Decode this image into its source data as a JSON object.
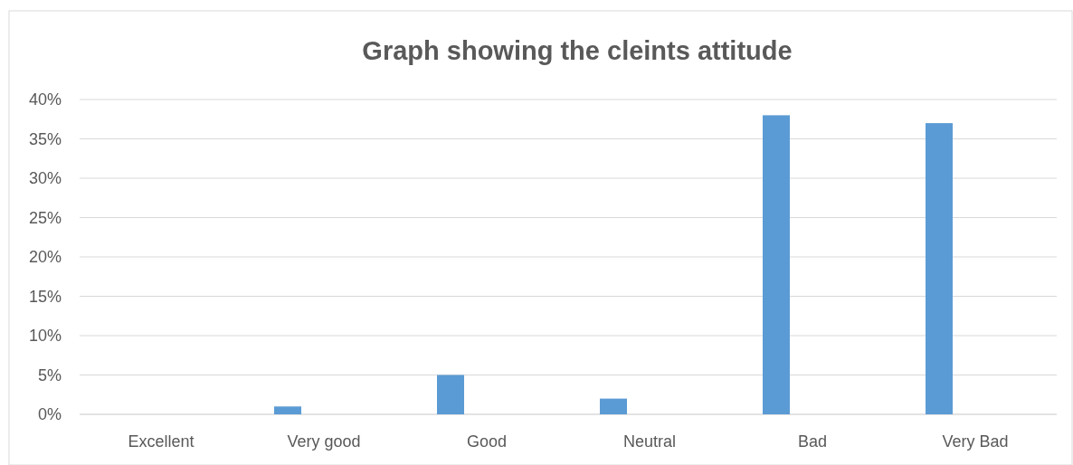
{
  "chart_data": {
    "type": "bar",
    "title": "Graph showing the cleints attitude",
    "categories": [
      "Excellent",
      "Very good",
      "Good",
      "Neutral",
      "Bad",
      "Very Bad"
    ],
    "values": [
      0,
      1,
      5,
      2,
      38,
      37
    ],
    "color": "#5b9bd5",
    "ylim": [
      0,
      40
    ],
    "yticks": [
      {
        "value": 0,
        "label": "0%"
      },
      {
        "value": 5,
        "label": "5%"
      },
      {
        "value": 10,
        "label": "10%"
      },
      {
        "value": 15,
        "label": "15%"
      },
      {
        "value": 20,
        "label": "20%"
      },
      {
        "value": 25,
        "label": "25%"
      },
      {
        "value": 30,
        "label": "30%"
      },
      {
        "value": 35,
        "label": "35%"
      },
      {
        "value": 40,
        "label": "40%"
      }
    ],
    "grid": "y"
  }
}
